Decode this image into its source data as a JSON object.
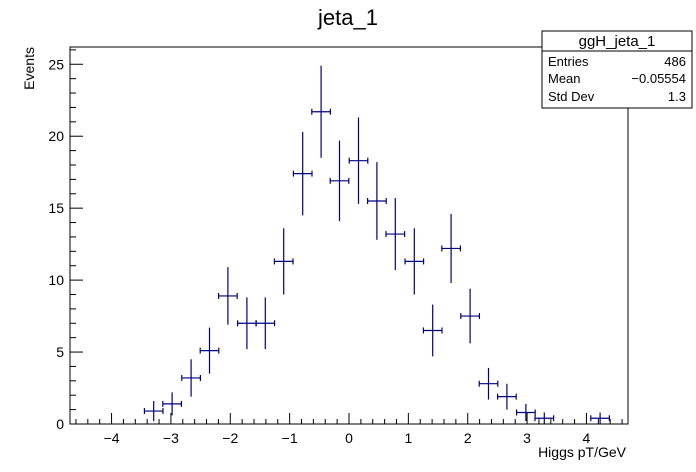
{
  "chart_data": {
    "type": "errorbar-histogram",
    "title": "jeta_1",
    "xlabel": "Higgs pT/GeV",
    "ylabel": "Events",
    "xlim": [
      -4.7,
      4.7
    ],
    "ylim": [
      0,
      26.2
    ],
    "x_ticks": [
      -4,
      -3,
      -2,
      -1,
      0,
      1,
      2,
      3,
      4
    ],
    "x_tick_labels": [
      "−4",
      "−3",
      "−2",
      "−1",
      "0",
      "1",
      "2",
      "3",
      "4"
    ],
    "y_ticks": [
      0,
      5,
      10,
      15,
      20,
      25
    ],
    "y_tick_labels": [
      "0",
      "5",
      "10",
      "15",
      "20",
      "25"
    ],
    "bin_width": 0.313,
    "marker_color": "#000080",
    "series": [
      {
        "x": [
          -3.29,
          -2.98,
          -2.66,
          -2.35,
          -2.04,
          -1.72,
          -1.41,
          -1.1,
          -0.78,
          -0.47,
          -0.16,
          0.16,
          0.47,
          0.78,
          1.1,
          1.41,
          1.72,
          2.04,
          2.35,
          2.66,
          2.98,
          3.29,
          4.23
        ],
        "y": [
          0.9,
          1.4,
          3.2,
          5.1,
          8.9,
          7.0,
          7.0,
          11.3,
          17.4,
          21.7,
          16.9,
          18.3,
          15.5,
          13.2,
          11.3,
          6.5,
          12.2,
          7.5,
          2.8,
          1.9,
          0.8,
          0.4,
          0.4
        ],
        "yerr": [
          0.7,
          0.8,
          1.3,
          1.6,
          2.0,
          1.8,
          1.8,
          2.3,
          2.9,
          3.2,
          2.8,
          3.0,
          2.7,
          2.5,
          2.3,
          1.8,
          2.4,
          1.9,
          1.1,
          0.9,
          0.6,
          0.4,
          0.4
        ]
      }
    ]
  },
  "stats_box": {
    "title": "ggH_jeta_1",
    "rows": [
      {
        "label": "Entries",
        "value": "486"
      },
      {
        "label": "Mean",
        "value": "−0.05554"
      },
      {
        "label": "Std Dev",
        "value": "1.3"
      }
    ]
  }
}
